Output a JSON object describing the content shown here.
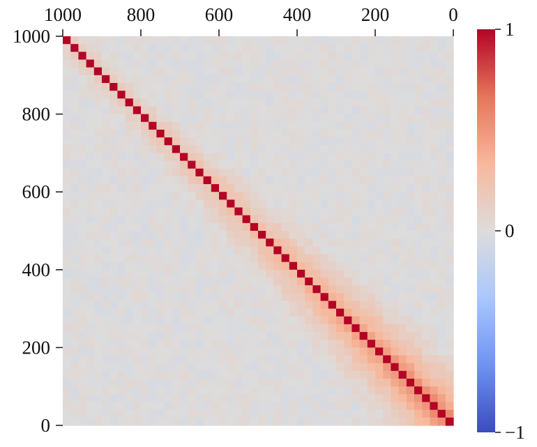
{
  "chart_data": {
    "type": "heatmap",
    "description_of_values": "correlation matrix between 50 points spaced 20 apart from 0 to 1000; diagonal equals 1",
    "x_axis": {
      "position": "top",
      "reversed": true,
      "range": [
        1000,
        0
      ],
      "ticks": [
        1000,
        800,
        600,
        400,
        200,
        0
      ],
      "tick_labels": [
        "1000",
        "800",
        "600",
        "400",
        "200",
        "0"
      ]
    },
    "y_axis": {
      "position": "left",
      "range": [
        0,
        1000
      ],
      "ticks": [
        1000,
        800,
        600,
        400,
        200,
        0
      ],
      "tick_labels": [
        "1000",
        "800",
        "600",
        "400",
        "200",
        "0"
      ]
    },
    "grid_size": 50,
    "cell_step": 20,
    "color_scale": {
      "colormap": "coolwarm",
      "vmin": -1,
      "vmax": 1,
      "ticks": [
        1,
        0,
        -1
      ],
      "tick_labels": [
        "1",
        "0",
        "−1"
      ],
      "colors": [
        "#3b4cc0",
        "#6f92f3",
        "#aac7fd",
        "#dddcdc",
        "#f7b89c",
        "#e7745b",
        "#b40426"
      ]
    },
    "diagonal_value": 1,
    "near_diagonal_correlation_by_position": [
      {
        "at": 0,
        "first_off_diagonal": 0.55,
        "decay_per_step": 0.1
      },
      {
        "at": 200,
        "first_off_diagonal": 0.45,
        "decay_per_step": 0.09
      },
      {
        "at": 400,
        "first_off_diagonal": 0.3,
        "decay_per_step": 0.08
      },
      {
        "at": 600,
        "first_off_diagonal": 0.22,
        "decay_per_step": 0.08
      },
      {
        "at": 800,
        "first_off_diagonal": 0.15,
        "decay_per_step": 0.08
      },
      {
        "at": 1000,
        "first_off_diagonal": 0.12,
        "decay_per_step": 0.08
      }
    ],
    "off_diagonal_background": 0.0,
    "background_noise_amplitude": 0.05,
    "title": "",
    "xlabel": "",
    "ylabel": "",
    "grid": false,
    "legend": "colorbar right"
  }
}
